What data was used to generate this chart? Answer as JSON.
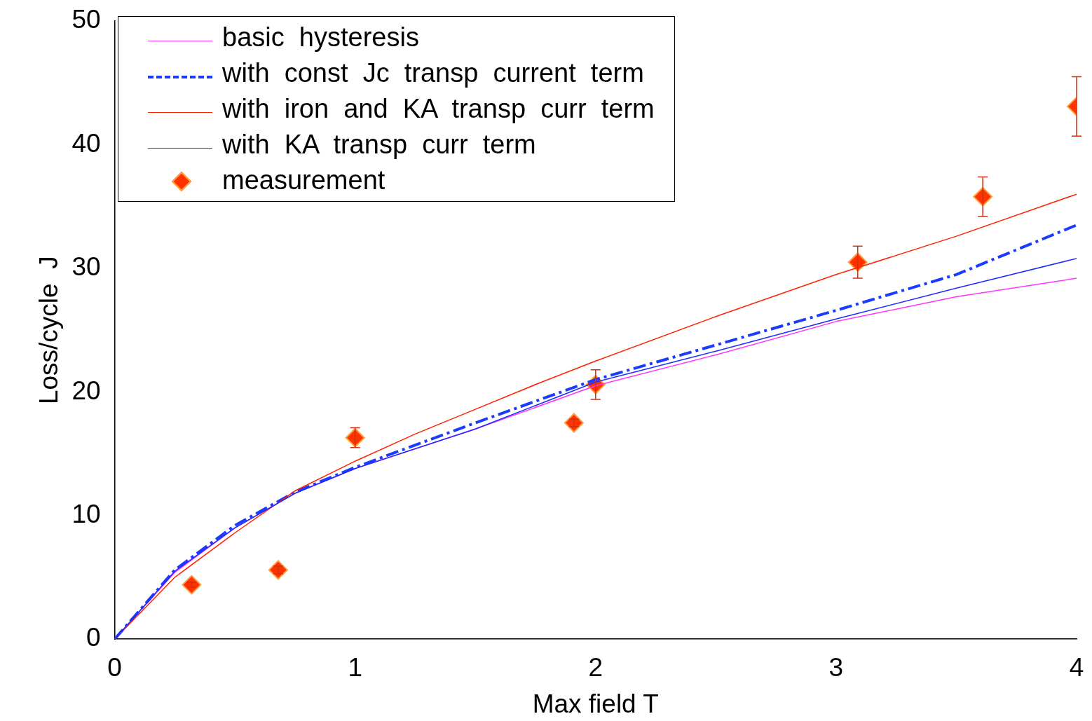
{
  "chart_data": {
    "type": "line",
    "xlabel": "Max field T",
    "ylabel": "Loss/cycle  J",
    "xlim": [
      0,
      4
    ],
    "ylim": [
      0,
      50
    ],
    "xticks": [
      0,
      1,
      2,
      3,
      4
    ],
    "yticks": [
      0,
      10,
      20,
      30,
      40,
      50
    ],
    "grid": false,
    "legend": "top left",
    "series": [
      {
        "name": "basic  hysteresis",
        "color": "#ff33ff",
        "x": [
          0,
          0.25,
          0.5,
          0.75,
          1,
          1.5,
          2,
          2.5,
          3,
          3.5,
          4
        ],
        "values": [
          0,
          5.4,
          9.0,
          11.8,
          13.8,
          17.0,
          20.5,
          23.0,
          25.7,
          27.7,
          29.2
        ]
      },
      {
        "name": "with  const  Jc  transp  current  term",
        "color": "#1a3cff",
        "line_style": "dashed",
        "x": [
          0,
          0.25,
          0.5,
          0.75,
          1,
          1.5,
          2,
          2.5,
          3,
          3.5,
          4
        ],
        "values": [
          0,
          5.6,
          9.2,
          11.9,
          13.9,
          17.5,
          21.0,
          23.8,
          26.6,
          29.5,
          33.5
        ]
      },
      {
        "name": "with  iron  and  KA  transp  curr  term",
        "color": "#ff2200",
        "x": [
          0,
          0.25,
          0.5,
          0.75,
          1,
          1.25,
          1.5,
          1.75,
          2,
          2.5,
          3,
          3.5,
          4
        ],
        "values": [
          0,
          5.0,
          8.6,
          12.0,
          14.4,
          16.6,
          18.6,
          20.6,
          22.5,
          26.1,
          29.5,
          32.6,
          36.0
        ]
      },
      {
        "name": "with  KA  transp  curr  term",
        "color": "#1a2cff",
        "x": [
          0,
          0.25,
          0.5,
          0.75,
          1,
          1.5,
          2,
          2.5,
          3,
          3.5,
          4
        ],
        "values": [
          0,
          5.5,
          9.0,
          11.8,
          13.8,
          17.0,
          20.8,
          23.3,
          25.9,
          28.4,
          30.8
        ]
      },
      {
        "name": "measurement",
        "type": "scatter",
        "marker": "diamond",
        "color": "#ff3300",
        "x": [
          0.32,
          0.68,
          1.0,
          1.91,
          2.0,
          3.09,
          3.61,
          4.0
        ],
        "values": [
          4.4,
          5.6,
          16.3,
          17.5,
          20.6,
          30.5,
          35.8,
          43.1
        ],
        "errors": [
          0.2,
          0.3,
          0.8,
          0.3,
          1.2,
          1.3,
          1.6,
          2.4
        ]
      }
    ]
  }
}
